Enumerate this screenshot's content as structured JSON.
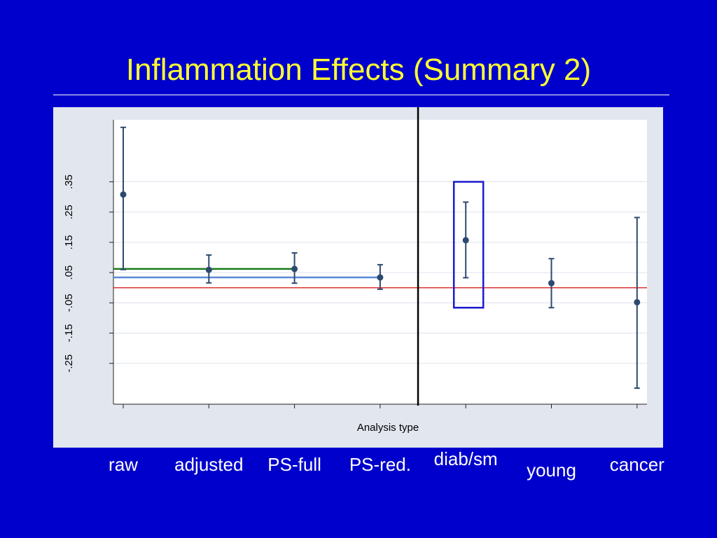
{
  "slide": {
    "title": "Inflammation Effects (Summary 2)"
  },
  "colors": {
    "background": "#0000cc",
    "title": "#ffff33",
    "points": "#2c4a70",
    "reference_line": "#e03030",
    "green_line": "#1a7a1a",
    "blue_line": "#5a8ad8",
    "highlight_box": "#1a1acc"
  },
  "chart_data": {
    "type": "scatter",
    "xlabel": "Analysis type",
    "ylabel": "",
    "ylim": [
      -0.385,
      0.555
    ],
    "yticks": [
      -0.25,
      -0.15,
      -0.05,
      0.05,
      0.15,
      0.25,
      0.35
    ],
    "ytick_labels": [
      "-.25",
      "-.15",
      "-.05",
      ".05",
      ".15",
      ".25",
      ".35"
    ],
    "categories": [
      "raw",
      "adjusted",
      "PS-full",
      "PS-red.",
      "diab/sm",
      "young",
      "cancer"
    ],
    "estimates": [
      0.308,
      0.059,
      0.062,
      0.034,
      0.157,
      0.015,
      -0.048
    ],
    "lower": [
      0.06,
      0.016,
      0.015,
      -0.005,
      0.033,
      -0.066,
      -0.332
    ],
    "upper": [
      0.53,
      0.108,
      0.115,
      0.076,
      0.283,
      0.096,
      0.232
    ],
    "reference_line": 0.0,
    "horizontal_lines": [
      {
        "value": 0.062,
        "from_category": 0,
        "to_category": 2,
        "color": "green"
      },
      {
        "value": 0.034,
        "from_category": 0,
        "to_category": 3,
        "color": "blue"
      }
    ],
    "divider_between_categories": [
      3,
      4
    ],
    "highlight_category": 4,
    "highlight_range": [
      -0.066,
      0.35
    ],
    "grid": true
  }
}
